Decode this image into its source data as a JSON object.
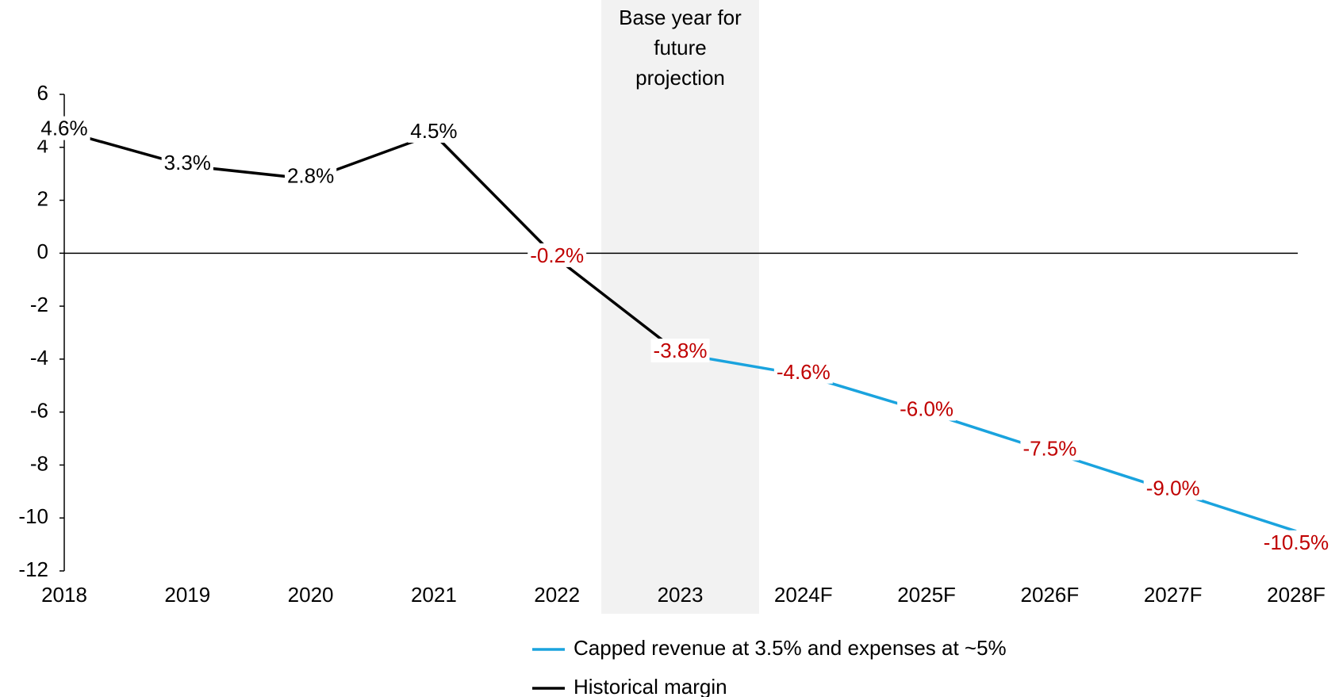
{
  "chart_data": {
    "type": "line",
    "annotation": [
      "Base year for",
      "future",
      "projection"
    ],
    "annotation_category": "2023",
    "categories": [
      "2018",
      "2019",
      "2020",
      "2021",
      "2022",
      "2023",
      "2024F",
      "2025F",
      "2026F",
      "2027F",
      "2028F"
    ],
    "series": [
      {
        "name": "Capped revenue at 3.5% and expenses at ~5%",
        "color": "#1aa3de",
        "values": [
          null,
          null,
          null,
          null,
          null,
          -3.8,
          -4.6,
          -6.0,
          -7.5,
          -9.0,
          -10.5
        ],
        "value_labels": [
          null,
          null,
          null,
          null,
          null,
          null,
          "-4.6%",
          "-6.0%",
          "-7.5%",
          "-9.0%",
          "-10.5%"
        ]
      },
      {
        "name": "Historical margin",
        "color": "#000000",
        "values": [
          4.6,
          3.3,
          2.8,
          4.5,
          -0.2,
          -3.8,
          null,
          null,
          null,
          null,
          null
        ],
        "value_labels": [
          "4.6%",
          "3.3%",
          "2.8%",
          "4.5%",
          "-0.2%",
          "-3.8%",
          null,
          null,
          null,
          null,
          null
        ]
      }
    ],
    "ylim": [
      -12,
      6
    ],
    "yticks": [
      -12,
      -10,
      -8,
      -6,
      -4,
      -2,
      0,
      2,
      4,
      6
    ],
    "negative_label_color": "#c00000"
  }
}
